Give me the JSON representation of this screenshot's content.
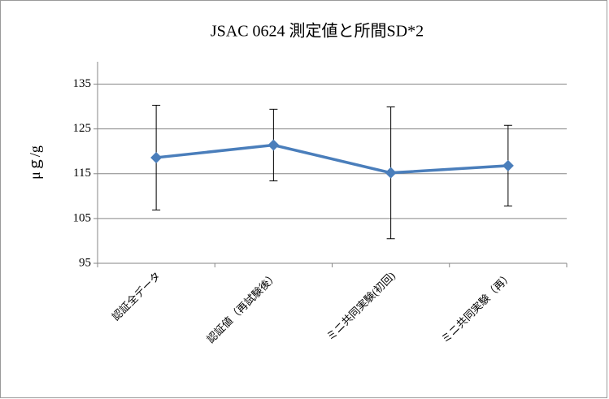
{
  "chart_data": {
    "type": "line",
    "title": "JSAC 0624 測定値と所間SD*2",
    "y_label": "μｇ/g",
    "categories": [
      "認証全データ",
      "認証値（再試験後）",
      "ミニ共同実験(初回)",
      "ミニ共同実験（再）"
    ],
    "series": [
      {
        "color": "#4a7ebb",
        "values": [
          118.6,
          121.4,
          115.2,
          116.8
        ],
        "errors": [
          11.7,
          8,
          14.7,
          9
        ]
      }
    ],
    "ylim": [
      95,
      140
    ],
    "yticks": [
      95,
      105,
      115,
      125,
      135
    ],
    "grid": true
  }
}
